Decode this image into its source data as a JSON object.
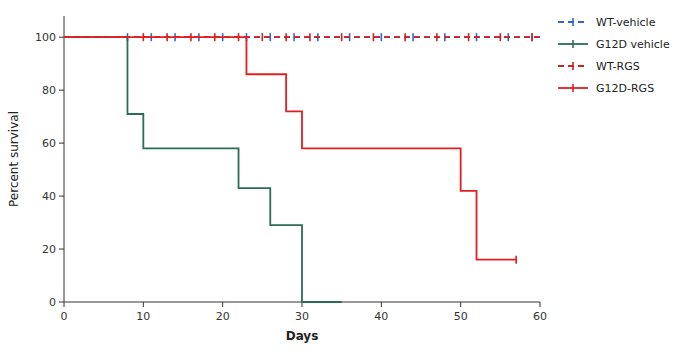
{
  "chart_data": {
    "type": "line",
    "title": "",
    "xlabel": "Days",
    "ylabel": "Percent survival",
    "xlim": [
      0,
      60
    ],
    "ylim": [
      0,
      108
    ],
    "xticks": [
      0,
      10,
      20,
      30,
      40,
      50,
      60
    ],
    "yticks": [
      0,
      20,
      40,
      60,
      80,
      100
    ],
    "grid": false,
    "legend": "right",
    "series": [
      {
        "name": "WT-vehicle",
        "color": "#3366cc",
        "line_style": "dashed",
        "marker": "tick",
        "x": [
          0,
          60
        ],
        "values": [
          100,
          100
        ],
        "censor_x": [
          8,
          11,
          14,
          17,
          20,
          23,
          26,
          29,
          32,
          36,
          40,
          44,
          48,
          52,
          56,
          59
        ],
        "censor_y": [
          100,
          100,
          100,
          100,
          100,
          100,
          100,
          100,
          100,
          100,
          100,
          100,
          100,
          100,
          100,
          100
        ]
      },
      {
        "name": "G12D vehicle",
        "color": "#2a6e55",
        "line_style": "solid",
        "marker": "tick",
        "x": [
          0,
          8,
          8,
          10,
          10,
          22,
          22,
          26,
          26,
          30,
          30,
          35
        ],
        "values": [
          100,
          100,
          71,
          71,
          58,
          58,
          43,
          43,
          29,
          29,
          0,
          0
        ],
        "censor_x": [],
        "censor_y": []
      },
      {
        "name": "WT-RGS",
        "color": "#cc2222",
        "line_style": "dashed",
        "marker": "tick",
        "x": [
          0,
          60
        ],
        "values": [
          100,
          100
        ],
        "censor_x": [
          10,
          13,
          16,
          19,
          22,
          25,
          28,
          31,
          35,
          39,
          43,
          47,
          51,
          55,
          59
        ],
        "censor_y": [
          100,
          100,
          100,
          100,
          100,
          100,
          100,
          100,
          100,
          100,
          100,
          100,
          100,
          100,
          100
        ]
      },
      {
        "name": "G12D-RGS",
        "color": "#e02020",
        "line_style": "solid",
        "marker": "tick",
        "x": [
          0,
          23,
          23,
          28,
          28,
          30,
          30,
          36,
          50,
          50,
          52,
          52,
          56,
          57
        ],
        "values": [
          100,
          100,
          86,
          86,
          72,
          72,
          58,
          58,
          58,
          42,
          42,
          16,
          16,
          16
        ],
        "censor_x": [
          57
        ],
        "censor_y": [
          16
        ]
      }
    ]
  }
}
